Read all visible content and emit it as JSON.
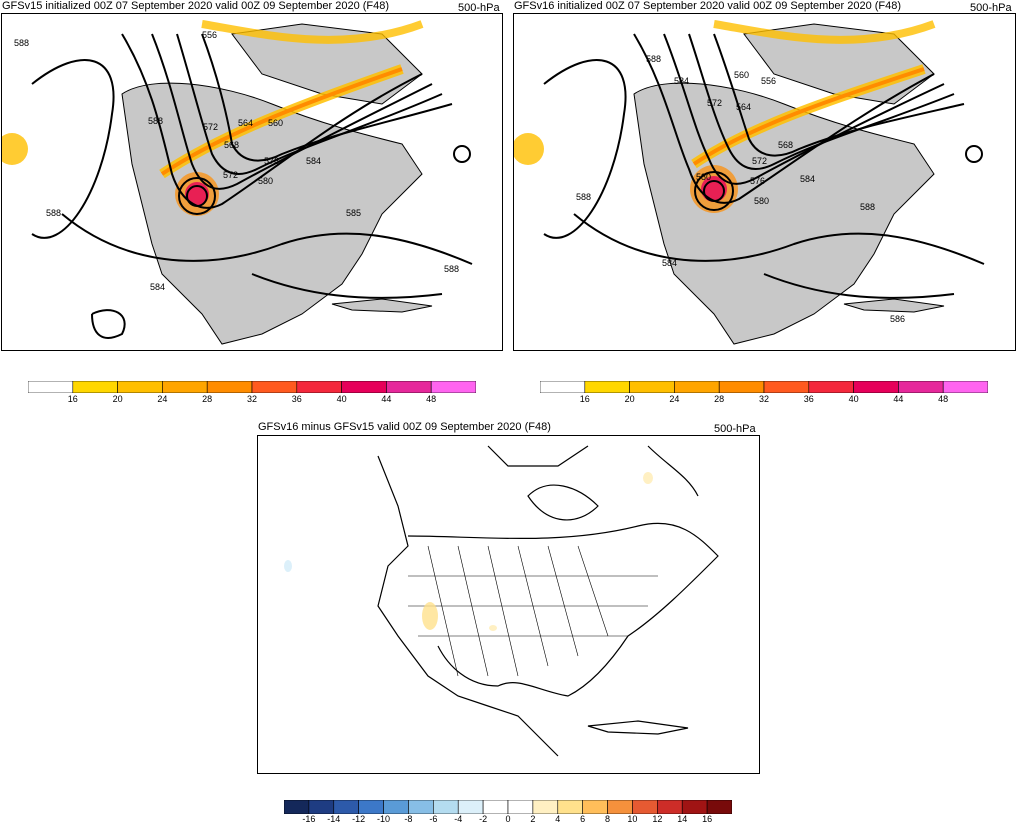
{
  "panels": [
    {
      "title": "GFSv15 initialized 00Z 07 September 2020 valid 00Z 09 September 2020 (F48)",
      "level": "500-hPa",
      "contour_labels": [
        "588",
        "556",
        "588",
        "572",
        "564",
        "560",
        "568",
        "576",
        "584",
        "572",
        "580",
        "588",
        "585",
        "588",
        "584"
      ]
    },
    {
      "title": "GFSv16 initialized 00Z 07 September 2020 valid 00Z 09 September 2020 (F48)",
      "level": "500-hPa",
      "contour_labels": [
        "588",
        "584",
        "560",
        "556",
        "572",
        "564",
        "568",
        "572",
        "580",
        "576",
        "584",
        "580",
        "588",
        "588",
        "584",
        "586"
      ]
    },
    {
      "title": "GFSv16 minus GFSv15 valid 00Z 09 September 2020 (F48)",
      "level": "500-hPa"
    }
  ],
  "colorbar_wind": {
    "labels": [
      "16",
      "20",
      "24",
      "28",
      "32",
      "36",
      "40",
      "44",
      "48"
    ],
    "colors": [
      "#ffffff",
      "#ffd700",
      "#ffbf00",
      "#ffa500",
      "#ff8c00",
      "#ff5a1f",
      "#f4283c",
      "#e6005a",
      "#e6289b",
      "#ff64f0"
    ]
  },
  "colorbar_diff": {
    "labels": [
      "-16",
      "-14",
      "-12",
      "-10",
      "-8",
      "-6",
      "-4",
      "-2",
      "0",
      "2",
      "4",
      "6",
      "8",
      "10",
      "12",
      "14",
      "16"
    ],
    "colors": [
      "#14285a",
      "#1e3c82",
      "#2d5aaa",
      "#3c78c8",
      "#5a9bd7",
      "#87bee6",
      "#b4dcf0",
      "#dcf0fa",
      "#ffffff",
      "#ffffff",
      "#fff0c3",
      "#ffe18c",
      "#ffbe5a",
      "#f5913c",
      "#e65a32",
      "#cd2d28",
      "#a01414",
      "#780a0a"
    ]
  }
}
